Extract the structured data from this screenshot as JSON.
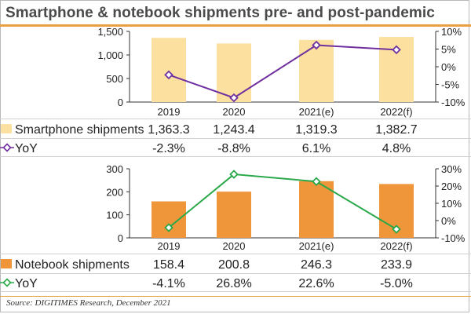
{
  "title": "Smartphone & notebook shipments pre- and post-pandemic",
  "source": "Source: DIGITIMES Research, December 2021",
  "colors": {
    "accent_rule": "#e8a040",
    "smartphone_bar": "#fbe0a0",
    "smartphone_line": "#7030a0",
    "notebook_bar": "#f0963a",
    "notebook_line": "#2aa84a"
  },
  "chart_data": [
    {
      "type": "bar",
      "categories": [
        "2019",
        "2020",
        "2021(e)",
        "2022(f)"
      ],
      "series": [
        {
          "name": "Smartphone shipments",
          "values": [
            1363.3,
            1243.4,
            1319.3,
            1382.7
          ],
          "labels": [
            "1,363.3",
            "1,243.4",
            "1,319.3",
            "1,382.7"
          ],
          "axis": "left"
        },
        {
          "name": "YoY",
          "type": "line",
          "values": [
            -2.3,
            -8.8,
            6.1,
            4.8
          ],
          "labels": [
            "-2.3%",
            "-8.8%",
            "6.1%",
            "4.8%"
          ],
          "axis": "right"
        }
      ],
      "ylim": [
        0,
        1500
      ],
      "yticks": [
        "0",
        "500",
        "1,000",
        "1,500"
      ],
      "y2lim": [
        -10,
        10
      ],
      "y2ticks": [
        "-10%",
        "-5%",
        "0%",
        "5%",
        "10%"
      ]
    },
    {
      "type": "bar",
      "categories": [
        "2019",
        "2020",
        "2021(e)",
        "2022(f)"
      ],
      "series": [
        {
          "name": "Notebook shipments",
          "values": [
            158.4,
            200.8,
            246.3,
            233.9
          ],
          "labels": [
            "158.4",
            "200.8",
            "246.3",
            "233.9"
          ],
          "axis": "left"
        },
        {
          "name": "YoY",
          "type": "line",
          "values": [
            -4.1,
            26.8,
            22.6,
            -5.0
          ],
          "labels": [
            "-4.1%",
            "26.8%",
            "22.6%",
            "-5.0%"
          ],
          "axis": "right"
        }
      ],
      "ylim": [
        0,
        300
      ],
      "yticks": [
        "0",
        "100",
        "200",
        "300"
      ],
      "y2lim": [
        -10,
        30
      ],
      "y2ticks": [
        "-10%",
        "0%",
        "10%",
        "20%",
        "30%"
      ]
    }
  ]
}
